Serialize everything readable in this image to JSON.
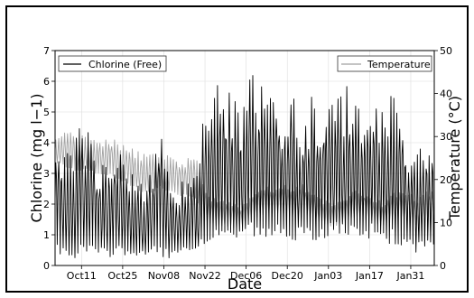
{
  "chart_data": {
    "type": "line",
    "xlabel": "Date",
    "ylabel_left": "Chlorine (mg l−1)",
    "ylabel_right": "Temperature (°C)",
    "ylim_left": [
      0,
      7
    ],
    "ylim_right": [
      0,
      50
    ],
    "yticks_left": [
      "0",
      "1",
      "2",
      "3",
      "4",
      "5",
      "6",
      "7"
    ],
    "yticks_right": [
      "0",
      "10",
      "20",
      "30",
      "40",
      "50"
    ],
    "x_range": [
      "2015-10-02",
      "2016-02-08"
    ],
    "xticks": [
      {
        "date": "2015-10-11",
        "label": "Oct11"
      },
      {
        "date": "2015-10-25",
        "label": "Oct25"
      },
      {
        "date": "2015-11-08",
        "label": "Nov08"
      },
      {
        "date": "2015-11-22",
        "label": "Nov22"
      },
      {
        "date": "2015-12-06",
        "label": "Dec06"
      },
      {
        "date": "2015-12-20",
        "label": "Dec20"
      },
      {
        "date": "2016-01-03",
        "label": "Jan03"
      },
      {
        "date": "2016-01-17",
        "label": "Jan17"
      },
      {
        "date": "2016-01-31",
        "label": "Jan31"
      }
    ],
    "grid": true,
    "series": [
      {
        "name": "Chlorine (Free)",
        "axis": "left",
        "color": "#000000",
        "sampling": "daily envelope (peak and base per day)",
        "x": [
          "2015-10-02",
          "2015-10-05",
          "2015-10-08",
          "2015-10-11",
          "2015-10-14",
          "2015-10-17",
          "2015-10-20",
          "2015-10-23",
          "2015-10-26",
          "2015-10-29",
          "2015-11-01",
          "2015-11-04",
          "2015-11-07",
          "2015-11-10",
          "2015-11-13",
          "2015-11-16",
          "2015-11-19",
          "2015-11-22",
          "2015-11-25",
          "2015-11-28",
          "2015-12-01",
          "2015-12-04",
          "2015-12-07",
          "2015-12-10",
          "2015-12-13",
          "2015-12-16",
          "2015-12-19",
          "2015-12-22",
          "2015-12-25",
          "2015-12-28",
          "2015-12-31",
          "2016-01-03",
          "2016-01-06",
          "2016-01-09",
          "2016-01-12",
          "2016-01-15",
          "2016-01-18",
          "2016-01-21",
          "2016-01-24",
          "2016-01-27",
          "2016-01-30",
          "2016-02-02",
          "2016-02-05",
          "2016-02-08"
        ],
        "peak": [
          4.6,
          4.0,
          3.9,
          4.8,
          4.3,
          3.2,
          3.6,
          4.1,
          3.3,
          3.0,
          2.8,
          3.2,
          4.5,
          3.0,
          2.6,
          3.1,
          2.8,
          5.4,
          6.2,
          5.5,
          5.8,
          5.1,
          6.2,
          6.3,
          5.6,
          5.8,
          5.1,
          5.8,
          4.4,
          5.6,
          4.8,
          6.1,
          5.5,
          5.9,
          5.2,
          5.5,
          6.1,
          5.2,
          5.8,
          5.4,
          4.4,
          3.8,
          4.1,
          4.3
        ],
        "base": [
          0.3,
          0.4,
          0.2,
          0.3,
          0.4,
          0.3,
          0.2,
          0.4,
          0.3,
          0.3,
          0.2,
          0.4,
          0.3,
          0.2,
          0.3,
          0.4,
          0.3,
          0.6,
          0.8,
          0.9,
          0.7,
          0.9,
          1.0,
          0.8,
          0.7,
          0.9,
          1.0,
          0.8,
          0.9,
          0.7,
          0.8,
          0.9,
          1.0,
          0.9,
          0.8,
          0.7,
          0.9,
          0.8,
          0.7,
          0.6,
          0.5,
          0.4,
          0.6,
          0.5
        ]
      },
      {
        "name": "Temperature",
        "axis": "right",
        "color": "#a0a0a0",
        "sampling": "daily envelope (high and low per day)",
        "x": [
          "2015-10-02",
          "2015-10-05",
          "2015-10-08",
          "2015-10-11",
          "2015-10-14",
          "2015-10-17",
          "2015-10-20",
          "2015-10-23",
          "2015-10-26",
          "2015-10-29",
          "2015-11-01",
          "2015-11-04",
          "2015-11-07",
          "2015-11-10",
          "2015-11-13",
          "2015-11-16",
          "2015-11-19",
          "2015-11-22",
          "2015-11-25",
          "2015-11-28",
          "2015-12-01",
          "2015-12-04",
          "2015-12-07",
          "2015-12-10",
          "2015-12-13",
          "2015-12-16",
          "2015-12-19",
          "2015-12-22",
          "2015-12-25",
          "2015-12-28",
          "2015-12-31",
          "2016-01-03",
          "2016-01-06",
          "2016-01-09",
          "2016-01-12",
          "2016-01-15",
          "2016-01-18",
          "2016-01-21",
          "2016-01-24",
          "2016-01-27",
          "2016-01-30",
          "2016-02-02",
          "2016-02-05",
          "2016-02-08"
        ],
        "high": [
          30,
          31,
          31,
          31,
          30,
          29,
          30,
          29,
          29,
          27,
          26,
          26,
          27,
          26,
          25,
          25,
          26,
          18,
          16,
          15,
          15,
          14,
          16,
          18,
          19,
          18,
          19,
          18,
          19,
          17,
          16,
          15,
          15,
          16,
          18,
          17,
          16,
          15,
          16,
          18,
          17,
          16,
          17,
          19
        ],
        "low": [
          24,
          23,
          22,
          22,
          22,
          21,
          21,
          20,
          19,
          18,
          17,
          17,
          18,
          17,
          16,
          16,
          15,
          10,
          9,
          9,
          9,
          8,
          10,
          11,
          12,
          12,
          12,
          11,
          12,
          11,
          10,
          9,
          9,
          10,
          11,
          11,
          10,
          9,
          10,
          11,
          10,
          9,
          10,
          11
        ]
      }
    ]
  }
}
